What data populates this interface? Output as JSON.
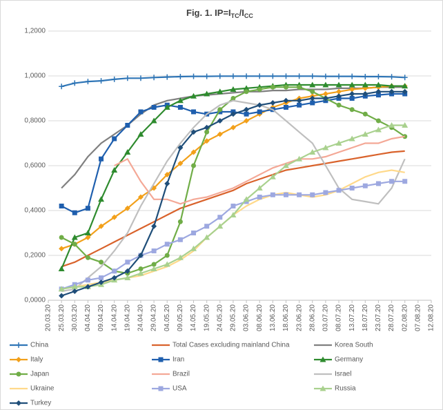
{
  "chart_data": {
    "type": "line",
    "title": {
      "text": "Fig. 1. IP=I",
      "sub1": "TC",
      "mid": "/I",
      "sub2": "CC"
    },
    "x": [
      "25.03.20",
      "30.03.20",
      "04.04.20",
      "09.04.20",
      "14.04.20",
      "19.04.20",
      "24.04.20",
      "29.04.20",
      "04.05.20",
      "09.05.20",
      "14.05.20",
      "19.05.20",
      "24.05.20",
      "29.05.20",
      "03.06.20",
      "08.06.20",
      "13.06.20",
      "18.06.20",
      "23.06.20",
      "28.06.20",
      "03.07.20",
      "08.07.20",
      "13.07.20",
      "18.07.20",
      "23.07.20",
      "28.07.20",
      "02.08.20"
    ],
    "xlim": [
      "20.03.20",
      "12.08.20"
    ],
    "xticks": [
      "20.03.20",
      "25.03.20",
      "30.03.20",
      "04.04.20",
      "09.04.20",
      "14.04.20",
      "19.04.20",
      "24.04.20",
      "29.04.20",
      "04.05.20",
      "09.05.20",
      "14.05.20",
      "19.05.20",
      "24.05.20",
      "29.05.20",
      "03.06.20",
      "08.06.20",
      "13.06.20",
      "18.06.20",
      "23.06.20",
      "28.06.20",
      "03.07.20",
      "08.07.20",
      "13.07.20",
      "18.07.20",
      "23.07.20",
      "28.07.20",
      "02.08.20",
      "07.08.20",
      "12.08.20"
    ],
    "ylim": [
      0,
      1.2
    ],
    "yticks": [
      {
        "value": 0,
        "label": "0,0000"
      },
      {
        "value": 0.2,
        "label": "0,2000"
      },
      {
        "value": 0.4,
        "label": "0,4000"
      },
      {
        "value": 0.6,
        "label": "0,6000"
      },
      {
        "value": 0.8,
        "label": "0,8000"
      },
      {
        "value": 1,
        "label": "1,0000"
      },
      {
        "value": 1.2,
        "label": "1,2000"
      }
    ],
    "grid": true,
    "series": [
      {
        "name": "China",
        "color": "#2e75b6",
        "marker": "plus",
        "values": [
          0.953,
          0.968,
          0.975,
          0.978,
          0.985,
          0.99,
          0.99,
          0.993,
          0.995,
          0.997,
          0.998,
          0.998,
          0.999,
          0.999,
          0.999,
          0.999,
          0.999,
          0.999,
          0.999,
          0.999,
          0.998,
          0.998,
          0.998,
          0.997,
          0.997,
          0.996,
          0.993
        ]
      },
      {
        "name": "Total Cases excluding mainland China",
        "color": "#d9622b",
        "marker": "none",
        "values": [
          0.15,
          0.17,
          0.2,
          0.23,
          0.26,
          0.29,
          0.32,
          0.35,
          0.38,
          0.41,
          0.43,
          0.45,
          0.47,
          0.49,
          0.52,
          0.54,
          0.56,
          0.58,
          0.59,
          0.6,
          0.61,
          0.62,
          0.63,
          0.64,
          0.65,
          0.66,
          0.665
        ]
      },
      {
        "name": "Korea South",
        "color": "#7f7f7f",
        "marker": "none",
        "values": [
          0.5,
          0.56,
          0.64,
          0.7,
          0.74,
          0.78,
          0.83,
          0.87,
          0.89,
          0.9,
          0.91,
          0.915,
          0.92,
          0.925,
          0.93,
          0.93,
          0.935,
          0.935,
          0.94,
          0.94,
          0.94,
          0.945,
          0.945,
          0.945,
          0.95,
          0.95,
          0.95
        ]
      },
      {
        "name": "Italy",
        "color": "#f2a01a",
        "marker": "diamond",
        "values": [
          0.23,
          0.25,
          0.28,
          0.33,
          0.37,
          0.41,
          0.46,
          0.5,
          0.56,
          0.61,
          0.66,
          0.71,
          0.74,
          0.77,
          0.8,
          0.83,
          0.86,
          0.88,
          0.9,
          0.91,
          0.92,
          0.93,
          0.94,
          0.945,
          0.95,
          0.955,
          0.955
        ]
      },
      {
        "name": "Iran",
        "color": "#1f5fae",
        "marker": "square",
        "values": [
          0.42,
          0.39,
          0.41,
          0.63,
          0.72,
          0.78,
          0.84,
          0.86,
          0.87,
          0.86,
          0.84,
          0.83,
          0.84,
          0.84,
          0.83,
          0.84,
          0.85,
          0.86,
          0.87,
          0.88,
          0.89,
          0.9,
          0.9,
          0.91,
          0.915,
          0.92,
          0.92
        ]
      },
      {
        "name": "Germany",
        "color": "#2e8b2e",
        "marker": "triangle",
        "values": [
          0.14,
          0.28,
          0.3,
          0.45,
          0.58,
          0.66,
          0.74,
          0.8,
          0.86,
          0.89,
          0.91,
          0.92,
          0.93,
          0.94,
          0.945,
          0.95,
          0.955,
          0.96,
          0.96,
          0.96,
          0.96,
          0.96,
          0.96,
          0.96,
          0.96,
          0.955,
          0.955
        ]
      },
      {
        "name": "Japan",
        "color": "#70ad47",
        "marker": "circle",
        "values": [
          0.28,
          0.25,
          0.19,
          0.17,
          0.13,
          0.12,
          0.14,
          0.16,
          0.2,
          0.35,
          0.6,
          0.75,
          0.85,
          0.9,
          0.93,
          0.94,
          0.95,
          0.95,
          0.95,
          0.93,
          0.9,
          0.87,
          0.85,
          0.83,
          0.8,
          0.77,
          0.73
        ]
      },
      {
        "name": "Brazil",
        "color": "#f4a896",
        "marker": "none",
        "values": [
          null,
          null,
          null,
          null,
          0.6,
          0.63,
          0.53,
          0.45,
          0.45,
          0.43,
          0.45,
          0.46,
          0.48,
          0.5,
          0.53,
          0.56,
          0.59,
          0.61,
          0.63,
          0.63,
          0.64,
          0.66,
          0.68,
          0.7,
          0.7,
          0.72,
          0.73
        ]
      },
      {
        "name": "Israel",
        "color": "#bfbfbf",
        "marker": "none",
        "values": [
          0.04,
          0.05,
          0.1,
          0.15,
          0.22,
          0.3,
          0.42,
          0.52,
          0.62,
          0.7,
          0.77,
          0.83,
          0.87,
          0.89,
          0.88,
          0.87,
          0.85,
          0.8,
          0.75,
          0.7,
          0.6,
          0.5,
          0.45,
          0.44,
          0.43,
          0.5,
          0.63
        ]
      },
      {
        "name": "Ukraine",
        "color": "#ffd98a",
        "marker": "none",
        "values": [
          0.05,
          0.06,
          0.07,
          0.08,
          0.09,
          0.1,
          0.11,
          0.13,
          0.15,
          0.18,
          0.22,
          0.28,
          0.33,
          0.38,
          0.42,
          0.45,
          0.47,
          0.48,
          0.47,
          0.46,
          0.47,
          0.49,
          0.52,
          0.55,
          0.57,
          0.58,
          0.57
        ]
      },
      {
        "name": "USA",
        "color": "#9da8e0",
        "marker": "square",
        "values": [
          0.05,
          0.07,
          0.09,
          0.1,
          0.13,
          0.17,
          0.2,
          0.22,
          0.25,
          0.27,
          0.3,
          0.33,
          0.37,
          0.42,
          0.44,
          0.46,
          0.47,
          0.47,
          0.47,
          0.47,
          0.48,
          0.49,
          0.5,
          0.51,
          0.52,
          0.53,
          0.53
        ]
      },
      {
        "name": "Russia",
        "color": "#a9d18e",
        "marker": "triangle",
        "values": [
          0.05,
          0.06,
          0.06,
          0.07,
          0.09,
          0.1,
          0.12,
          0.14,
          0.16,
          0.19,
          0.23,
          0.28,
          0.33,
          0.38,
          0.45,
          0.5,
          0.55,
          0.6,
          0.63,
          0.66,
          0.68,
          0.7,
          0.72,
          0.74,
          0.76,
          0.78,
          0.78
        ]
      },
      {
        "name": "Turkey",
        "color": "#1f4e79",
        "marker": "diamond",
        "values": [
          0.02,
          0.04,
          0.06,
          0.08,
          0.1,
          0.13,
          0.2,
          0.33,
          0.52,
          0.68,
          0.75,
          0.77,
          0.8,
          0.83,
          0.85,
          0.87,
          0.88,
          0.89,
          0.89,
          0.9,
          0.9,
          0.91,
          0.92,
          0.92,
          0.93,
          0.93,
          0.93
        ]
      }
    ]
  }
}
